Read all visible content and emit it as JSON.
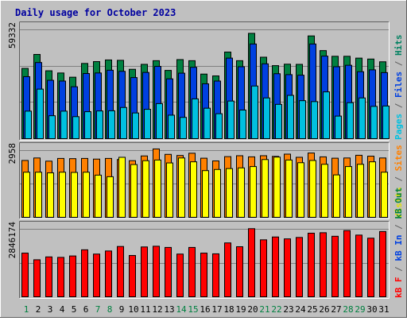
{
  "chart_data": {
    "type": "bar",
    "title": "Daily usage for October 2023",
    "categories": [
      "1",
      "2",
      "3",
      "4",
      "5",
      "6",
      "7",
      "8",
      "9",
      "10",
      "11",
      "12",
      "13",
      "14",
      "15",
      "16",
      "17",
      "18",
      "19",
      "20",
      "21",
      "22",
      "23",
      "24",
      "25",
      "26",
      "27",
      "28",
      "29",
      "30",
      "31"
    ],
    "weekend_days": [
      "1",
      "7",
      "8",
      "14",
      "15",
      "21",
      "22",
      "28",
      "29"
    ],
    "panels": [
      {
        "id": "top",
        "max_label": "59332",
        "ymax": 59332,
        "side_labels": [
          {
            "text": "Pages",
            "color": "#00c0e0"
          },
          {
            "text": " / ",
            "color": "#606060"
          },
          {
            "text": "Files",
            "color": "#0040e0"
          },
          {
            "text": " / ",
            "color": "#606060"
          },
          {
            "text": "Hits",
            "color": "#008060"
          }
        ],
        "series": [
          {
            "name": "Hits",
            "color": "#008040",
            "values": [
              38300,
              45900,
              37000,
              35800,
              33500,
              41000,
              42000,
              42900,
              42700,
              37800,
              40500,
              42500,
              37200,
              43100,
              42500,
              35200,
              34200,
              47200,
              42500,
              57400,
              44400,
              39800,
              40600,
              40500,
              56000,
              48000,
              44900,
              44900,
              43900,
              43400,
              41900
            ]
          },
          {
            "name": "Files",
            "color": "#0040e0",
            "values": [
              33800,
              41500,
              31800,
              31400,
              28300,
              35500,
              35800,
              37300,
              36700,
              33300,
              36100,
              39400,
              32600,
              35700,
              38900,
              29900,
              31400,
              43900,
              39200,
              51600,
              40800,
              35400,
              34900,
              34600,
              51600,
              45000,
              39200,
              40000,
              36500,
              37500,
              36000
            ]
          },
          {
            "name": "Pages",
            "color": "#00c0e0",
            "values": [
              15000,
              27000,
              12500,
              15000,
              12000,
              14700,
              15100,
              15200,
              17000,
              14000,
              16000,
              19100,
              12800,
              11600,
              21700,
              16600,
              13600,
              20500,
              15600,
              28700,
              22200,
              18700,
              23600,
              20700,
              20200,
              25500,
              12300,
              19600,
              22200,
              17600,
              17800
            ]
          }
        ]
      },
      {
        "id": "middle",
        "max_label": "2958",
        "ymax": 2958,
        "side_labels": [
          {
            "text": "Visits",
            "color": "#e0e000"
          },
          {
            "text": " / ",
            "color": "#606060"
          },
          {
            "text": "Sites",
            "color": "#ff8000"
          }
        ],
        "series": [
          {
            "name": "Sites",
            "color": "#ff8000",
            "values": [
              2520,
              2630,
              2490,
              2610,
              2600,
              2610,
              2580,
              2610,
              2560,
              2510,
              2720,
              3030,
              2790,
              2740,
              2840,
              2620,
              2500,
              2690,
              2730,
              2680,
              2730,
              2700,
              2800,
              2660,
              2850,
              2680,
              2620,
              2630,
              2750,
              2710,
              2630
            ]
          },
          {
            "name": "Visits",
            "color": "#ffff00",
            "values": [
              2000,
              2000,
              1970,
              2000,
              1990,
              2000,
              1870,
              1800,
              2660,
              2340,
              2510,
              2540,
              2410,
              2630,
              2460,
              2070,
              2120,
              2160,
              2190,
              2250,
              2560,
              2670,
              2540,
              2420,
              2520,
              2350,
              1880,
              2250,
              2350,
              2460,
              2000
            ]
          }
        ]
      },
      {
        "id": "bottom",
        "max_label": "2846174",
        "ymax": 2846174,
        "side_labels": [
          {
            "text": "kB F",
            "color": "#ff0000"
          },
          {
            "text": " / ",
            "color": "#606060"
          },
          {
            "text": "kB In",
            "color": "#0040e0"
          },
          {
            "text": " / ",
            "color": "#606060"
          },
          {
            "text": "kB Out",
            "color": "#008040"
          }
        ],
        "series": [
          {
            "name": "kB F",
            "color": "#ff0000",
            "values": [
              1840000,
              1560000,
              1680000,
              1660000,
              1720000,
              1980000,
              1800000,
              1930000,
              2120000,
              1740000,
              2100000,
              2130000,
              2080000,
              1800000,
              2080000,
              1840000,
              1810000,
              2270000,
              2110000,
              2870000,
              2400000,
              2520000,
              2440000,
              2500000,
              2680000,
              2700000,
              2550000,
              2790000,
              2600000,
              2470000,
              2750000
            ]
          }
        ]
      }
    ]
  }
}
